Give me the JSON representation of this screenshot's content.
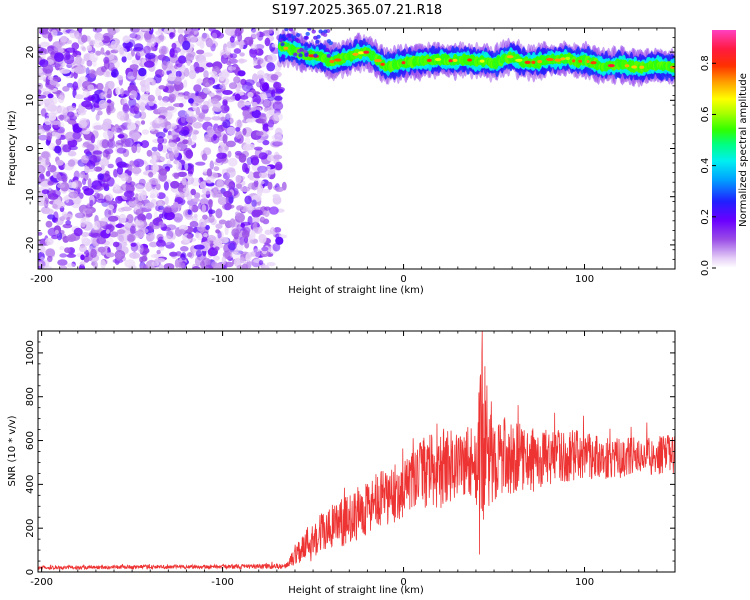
{
  "figure_title": "S197.2025.365.07.21.R18",
  "chart_data": [
    {
      "type": "heatmap",
      "xlabel": "Height of straight line (km)",
      "ylabel": "Frequency (Hz)",
      "xlim": [
        -202,
        150
      ],
      "ylim": [
        -25,
        25
      ],
      "xticks": [
        -200,
        -100,
        0,
        100
      ],
      "xtick_labels": [
        "-200",
        "-100",
        "0",
        "100"
      ],
      "yticks": [
        -20,
        -10,
        0,
        10,
        20
      ],
      "ytick_labels": [
        "-20",
        "-10",
        "0",
        "10",
        "20"
      ],
      "colorbar": {
        "label": "Normalized spectral amplitude",
        "range": [
          0,
          0.93
        ],
        "ticks": [
          0,
          0.2,
          0.4,
          0.6,
          0.8
        ],
        "tick_labels": [
          "0.0",
          "0.2",
          "0.4",
          "0.6",
          "0.8"
        ],
        "colormap": "rainbow (violet → blue → cyan → green → yellow → red → magenta)",
        "colors": [
          "#ffffff",
          "#d9b8f2",
          "#7a1fe6",
          "#2a2aff",
          "#00d0ff",
          "#00ff40",
          "#ffff00",
          "#ff6000",
          "#ff1a1a",
          "#ff40c0"
        ]
      },
      "noise_region": {
        "x_range": [
          -202,
          -68
        ],
        "freq_range": [
          -25,
          25
        ],
        "amplitude_range": [
          0.0,
          0.15
        ]
      },
      "ridge": {
        "x": [
          -68,
          -60,
          -55,
          -50,
          -45,
          -40,
          -35,
          -30,
          -25,
          -20,
          -15,
          -10,
          -5,
          0,
          5,
          10,
          15,
          20,
          25,
          30,
          35,
          40,
          45,
          50,
          55,
          60,
          65,
          70,
          75,
          80,
          85,
          90,
          95,
          100,
          105,
          110,
          115,
          120,
          125,
          130,
          135,
          140,
          145,
          150
        ],
        "freq": [
          21.0,
          20.5,
          19.5,
          19.2,
          19.0,
          18.0,
          18.5,
          19.0,
          19.8,
          20.0,
          18.5,
          17.0,
          17.3,
          17.8,
          18.0,
          18.2,
          18.3,
          18.5,
          18.2,
          18.3,
          18.5,
          18.0,
          18.2,
          17.5,
          18.5,
          19.2,
          18.0,
          17.8,
          18.0,
          18.5,
          18.3,
          18.8,
          18.0,
          18.2,
          17.8,
          17.0,
          17.2,
          17.5,
          17.0,
          16.8,
          17.0,
          17.3,
          17.0,
          16.8
        ],
        "peak_amplitude": 0.85
      }
    },
    {
      "type": "line",
      "xlabel": "Height of straight line (km)",
      "ylabel": "SNR (10 * v/v)",
      "xlim": [
        -202,
        150
      ],
      "ylim": [
        0,
        1100
      ],
      "xticks": [
        -200,
        -100,
        0,
        100
      ],
      "xtick_labels": [
        "-200",
        "-100",
        "0",
        "100"
      ],
      "yticks": [
        0,
        200,
        400,
        600,
        800,
        1000
      ],
      "ytick_labels": [
        "0",
        "200",
        "400",
        "600",
        "800",
        "1000"
      ],
      "line_color": "#ee3333",
      "envelope_x": [
        -202,
        -100,
        -65,
        -60,
        -50,
        -40,
        -30,
        -20,
        -10,
        0,
        10,
        20,
        30,
        40,
        43,
        44,
        46,
        50,
        60,
        70,
        80,
        90,
        100,
        110,
        120,
        130,
        140,
        150
      ],
      "envelope_mean": [
        20,
        25,
        25,
        80,
        160,
        200,
        240,
        300,
        330,
        380,
        450,
        470,
        500,
        500,
        560,
        640,
        560,
        530,
        520,
        510,
        520,
        530,
        540,
        520,
        520,
        530,
        530,
        540
      ],
      "envelope_spread": [
        8,
        10,
        12,
        50,
        90,
        110,
        110,
        130,
        140,
        130,
        160,
        180,
        170,
        180,
        400,
        450,
        300,
        200,
        170,
        150,
        130,
        120,
        110,
        100,
        90,
        90,
        90,
        90
      ],
      "peak": {
        "x": 43.5,
        "y": 1100
      },
      "trough": {
        "x": 42,
        "y": 80
      }
    }
  ]
}
